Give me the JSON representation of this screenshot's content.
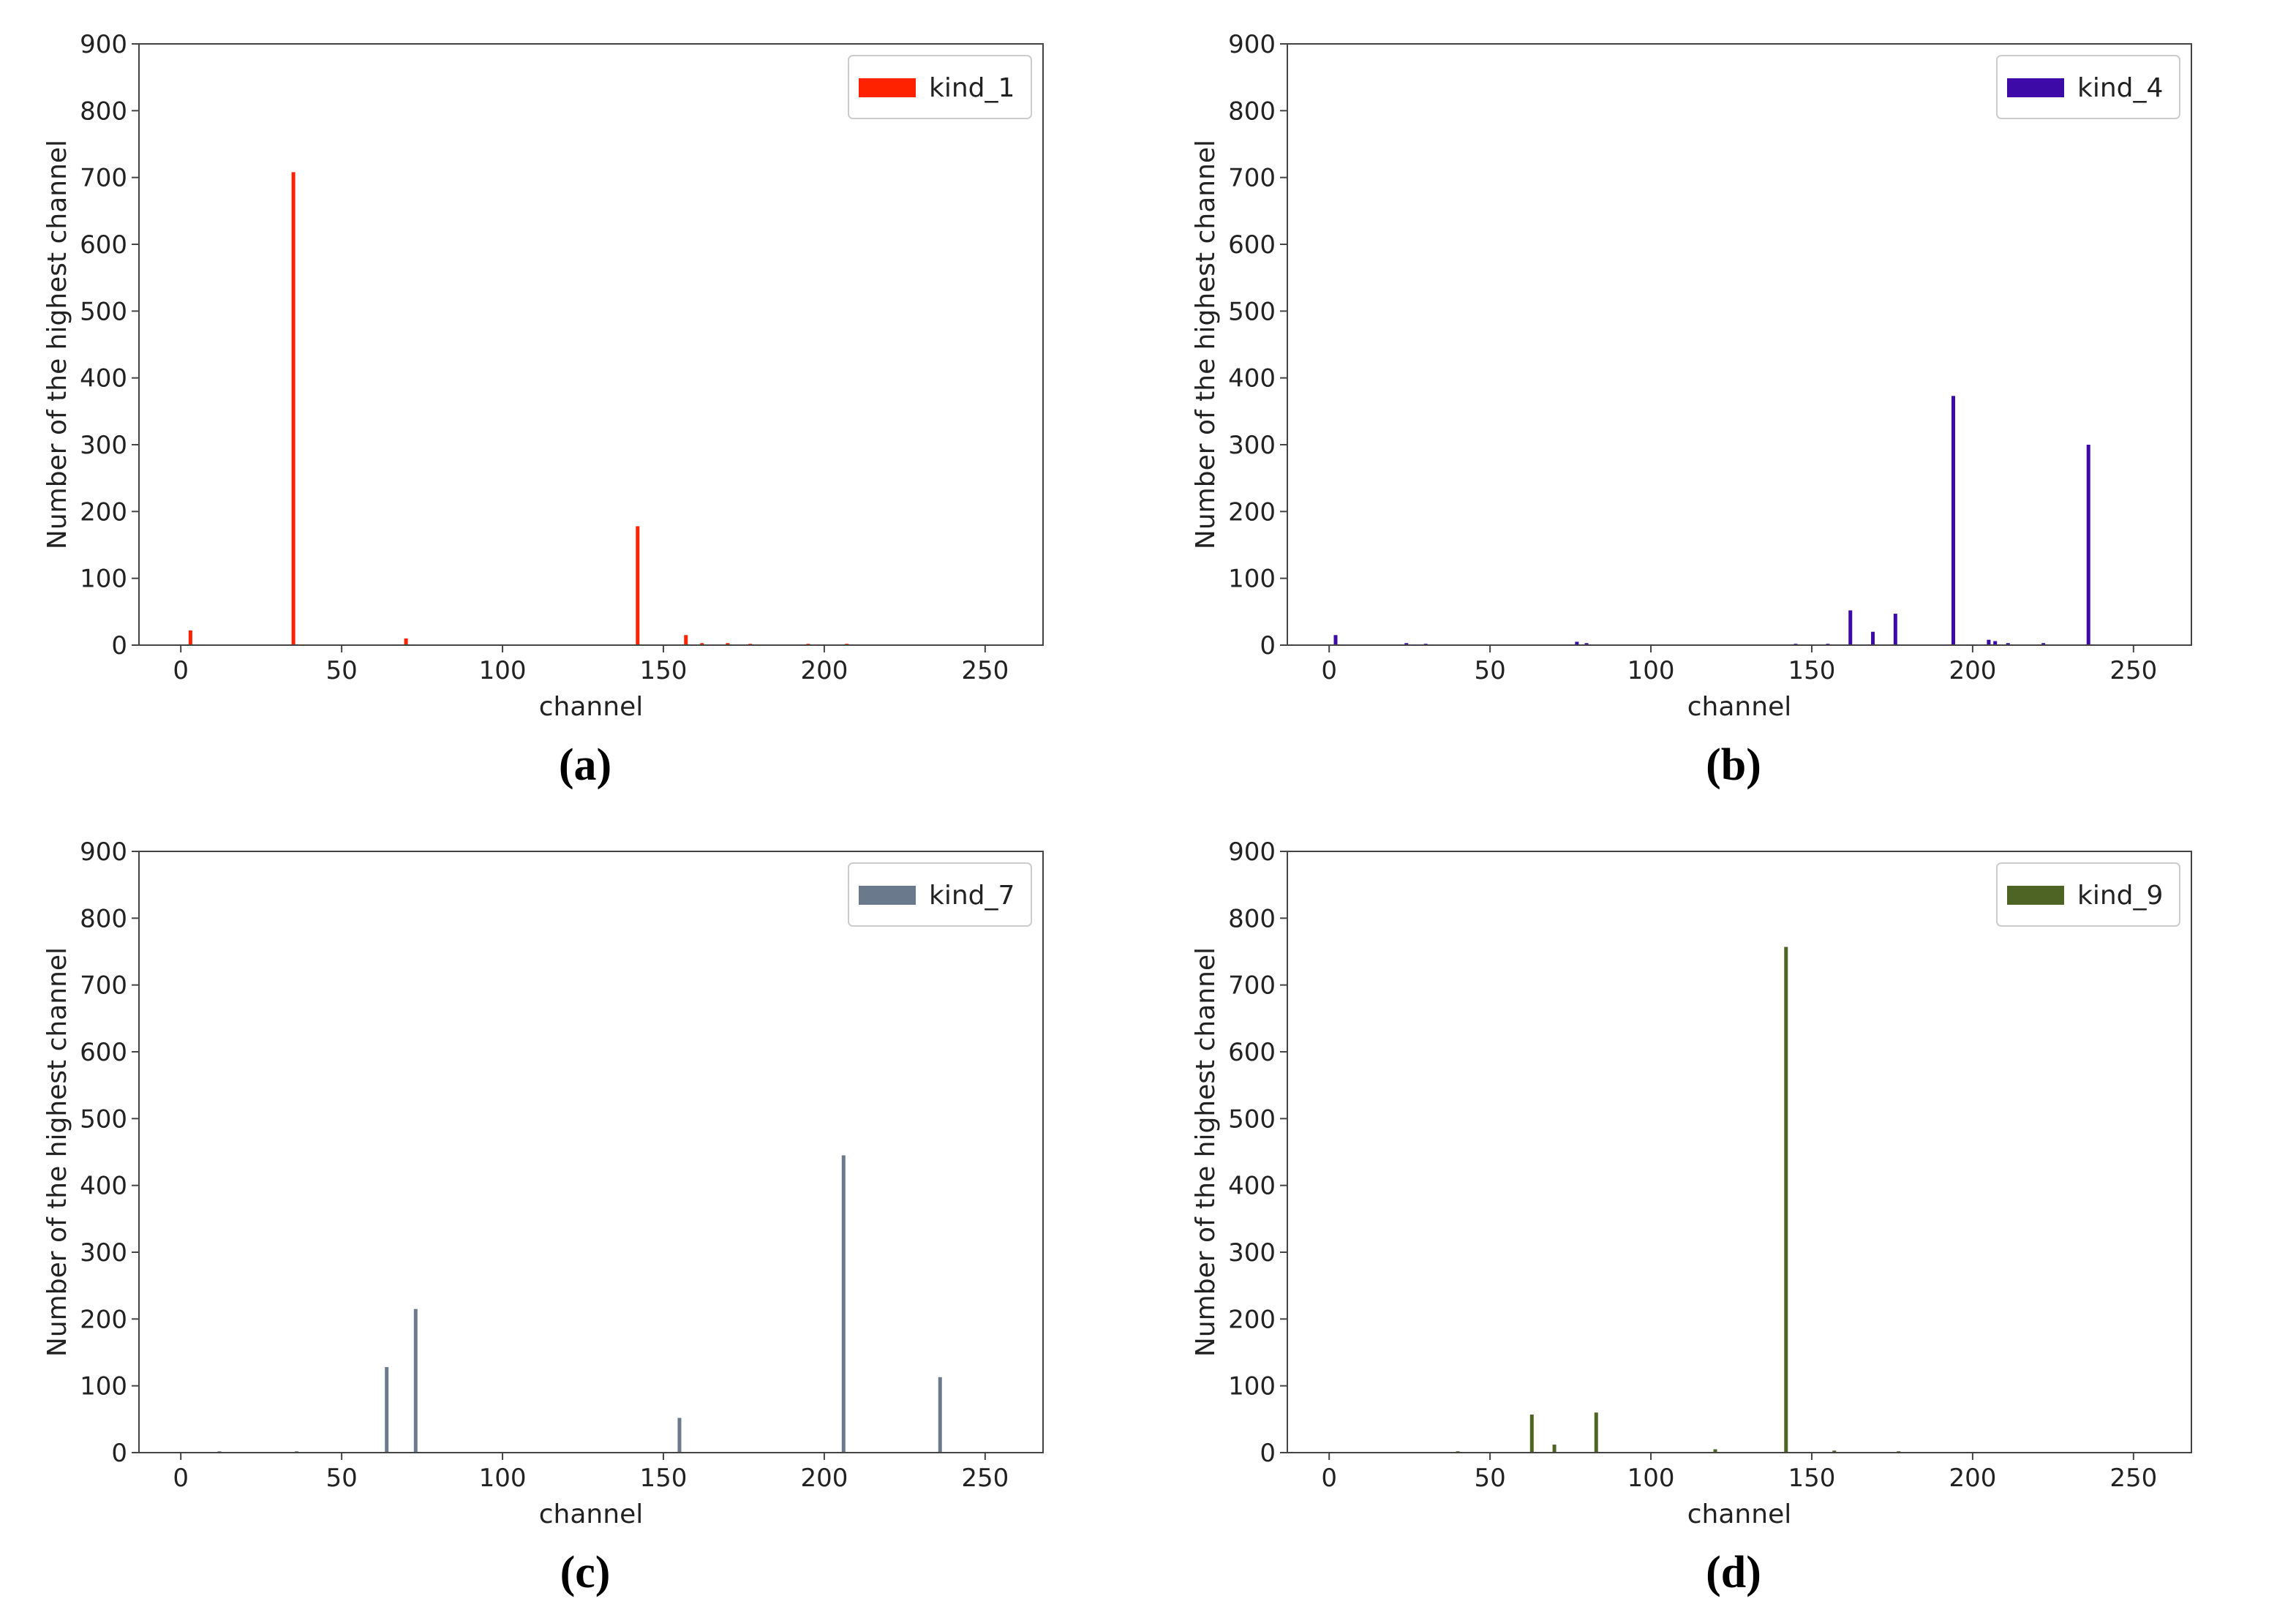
{
  "chart_data": [
    {
      "type": "bar",
      "caption": "(a)",
      "xlabel": "channel",
      "ylabel": "Number of the highest channel",
      "xlim": [
        -13,
        268
      ],
      "ylim": [
        0,
        900
      ],
      "xticks": [
        0,
        50,
        100,
        150,
        200,
        250
      ],
      "yticks": [
        0,
        100,
        200,
        300,
        400,
        500,
        600,
        700,
        800,
        900
      ],
      "legend": "upper-right",
      "series": [
        {
          "name": "kind_1",
          "color": "#ff2200",
          "points": [
            {
              "x": 3,
              "y": 22
            },
            {
              "x": 35,
              "y": 708
            },
            {
              "x": 70,
              "y": 10
            },
            {
              "x": 142,
              "y": 178
            },
            {
              "x": 157,
              "y": 15
            },
            {
              "x": 162,
              "y": 3
            },
            {
              "x": 170,
              "y": 3
            },
            {
              "x": 177,
              "y": 2
            },
            {
              "x": 195,
              "y": 2
            },
            {
              "x": 207,
              "y": 2
            }
          ]
        }
      ]
    },
    {
      "type": "bar",
      "caption": "(b)",
      "xlabel": "channel",
      "ylabel": "Number of the highest channel",
      "xlim": [
        -13,
        268
      ],
      "ylim": [
        0,
        900
      ],
      "xticks": [
        0,
        50,
        100,
        150,
        200,
        250
      ],
      "yticks": [
        0,
        100,
        200,
        300,
        400,
        500,
        600,
        700,
        800,
        900
      ],
      "legend": "upper-right",
      "series": [
        {
          "name": "kind_4",
          "color": "#3d0aa8",
          "points": [
            {
              "x": 2,
              "y": 15
            },
            {
              "x": 24,
              "y": 3
            },
            {
              "x": 30,
              "y": 2
            },
            {
              "x": 77,
              "y": 5
            },
            {
              "x": 80,
              "y": 3
            },
            {
              "x": 145,
              "y": 2
            },
            {
              "x": 155,
              "y": 2
            },
            {
              "x": 162,
              "y": 52
            },
            {
              "x": 169,
              "y": 20
            },
            {
              "x": 176,
              "y": 47
            },
            {
              "x": 194,
              "y": 373
            },
            {
              "x": 205,
              "y": 8
            },
            {
              "x": 207,
              "y": 6
            },
            {
              "x": 211,
              "y": 3
            },
            {
              "x": 222,
              "y": 3
            },
            {
              "x": 236,
              "y": 300
            }
          ]
        }
      ]
    },
    {
      "type": "bar",
      "caption": "(c)",
      "xlabel": "channel",
      "ylabel": "Number of the highest channel",
      "xlim": [
        -13,
        268
      ],
      "ylim": [
        0,
        900
      ],
      "xticks": [
        0,
        50,
        100,
        150,
        200,
        250
      ],
      "yticks": [
        0,
        100,
        200,
        300,
        400,
        500,
        600,
        700,
        800,
        900
      ],
      "legend": "upper-right",
      "series": [
        {
          "name": "kind_7",
          "color": "#6a7a8c",
          "points": [
            {
              "x": 12,
              "y": 2
            },
            {
              "x": 36,
              "y": 2
            },
            {
              "x": 64,
              "y": 128
            },
            {
              "x": 73,
              "y": 215
            },
            {
              "x": 155,
              "y": 52
            },
            {
              "x": 206,
              "y": 445
            },
            {
              "x": 236,
              "y": 113
            }
          ]
        }
      ]
    },
    {
      "type": "bar",
      "caption": "(d)",
      "xlabel": "channel",
      "ylabel": "Number of the highest channel",
      "xlim": [
        -13,
        268
      ],
      "ylim": [
        0,
        900
      ],
      "xticks": [
        0,
        50,
        100,
        150,
        200,
        250
      ],
      "yticks": [
        0,
        100,
        200,
        300,
        400,
        500,
        600,
        700,
        800,
        900
      ],
      "legend": "upper-right",
      "series": [
        {
          "name": "kind_9",
          "color": "#4e6424",
          "points": [
            {
              "x": 40,
              "y": 2
            },
            {
              "x": 63,
              "y": 57
            },
            {
              "x": 70,
              "y": 12
            },
            {
              "x": 83,
              "y": 60
            },
            {
              "x": 120,
              "y": 5
            },
            {
              "x": 142,
              "y": 757
            },
            {
              "x": 157,
              "y": 3
            },
            {
              "x": 177,
              "y": 2
            }
          ]
        }
      ]
    }
  ]
}
